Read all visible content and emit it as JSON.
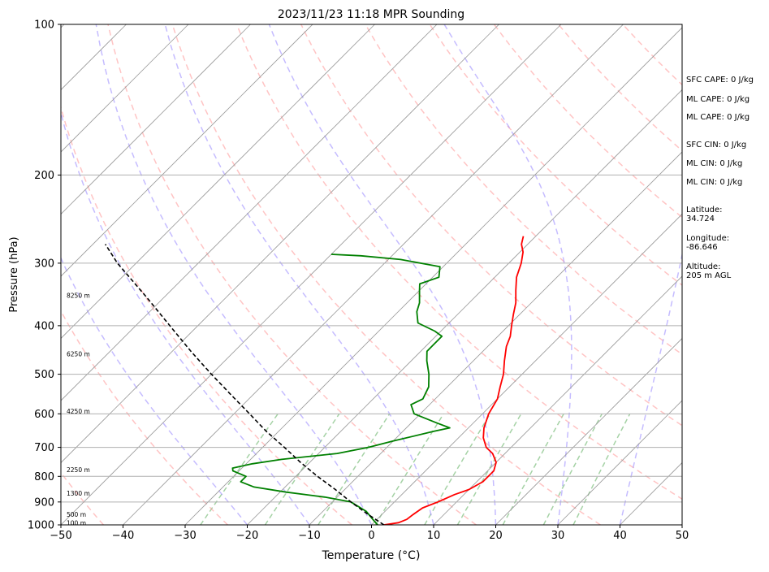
{
  "chart_data": {
    "type": "skew-t",
    "title": "2023/11/23 11:18 MPR Sounding",
    "xlabel": "Temperature (°C)",
    "ylabel": "Pressure (hPa)",
    "xlim": [
      -50,
      50
    ],
    "ylim": [
      1000,
      100
    ],
    "yscale": "log",
    "x_ticks": [
      -50,
      -40,
      -30,
      -20,
      -10,
      0,
      10,
      20,
      30,
      40,
      50
    ],
    "y_ticks": [
      1000,
      900,
      800,
      700,
      600,
      500,
      400,
      300,
      200,
      100
    ],
    "x_tick_labels": [
      "−50",
      "−40",
      "−30",
      "−20",
      "−10",
      "0",
      "10",
      "20",
      "30",
      "40",
      "50"
    ],
    "y_tick_labels": [
      "1000",
      "900",
      "800",
      "700",
      "600",
      "500",
      "400",
      "300",
      "200",
      "100"
    ],
    "grid": true,
    "series": [
      {
        "role": "temperature",
        "color": "#ff0000",
        "points": [
          {
            "p": 1000,
            "t": 2.0
          },
          {
            "p": 990,
            "t": 4.0
          },
          {
            "p": 975,
            "t": 4.8
          },
          {
            "p": 955,
            "t": 5.0
          },
          {
            "p": 925,
            "t": 5.5
          },
          {
            "p": 900,
            "t": 7.0
          },
          {
            "p": 870,
            "t": 8.5
          },
          {
            "p": 850,
            "t": 10.0
          },
          {
            "p": 820,
            "t": 11.0
          },
          {
            "p": 780,
            "t": 11.0
          },
          {
            "p": 750,
            "t": 10.0
          },
          {
            "p": 720,
            "t": 8.0
          },
          {
            "p": 700,
            "t": 6.0
          },
          {
            "p": 670,
            "t": 4.0
          },
          {
            "p": 640,
            "t": 2.5
          },
          {
            "p": 600,
            "t": 1.0
          },
          {
            "p": 560,
            "t": 0.0
          },
          {
            "p": 530,
            "t": -1.5
          },
          {
            "p": 500,
            "t": -3.0
          },
          {
            "p": 470,
            "t": -5.0
          },
          {
            "p": 440,
            "t": -7.0
          },
          {
            "p": 420,
            "t": -8.0
          },
          {
            "p": 400,
            "t": -9.5
          },
          {
            "p": 380,
            "t": -11.0
          },
          {
            "p": 360,
            "t": -12.5
          },
          {
            "p": 340,
            "t": -14.5
          },
          {
            "p": 320,
            "t": -16.5
          },
          {
            "p": 300,
            "t": -18.0
          },
          {
            "p": 285,
            "t": -19.5
          },
          {
            "p": 275,
            "t": -21.0
          },
          {
            "p": 265,
            "t": -22.0
          }
        ]
      },
      {
        "role": "dewpoint",
        "color": "#008000",
        "points": [
          {
            "p": 1000,
            "t": 1.0
          },
          {
            "p": 985,
            "t": 0.0
          },
          {
            "p": 970,
            "t": -1.0
          },
          {
            "p": 940,
            "t": -3.0
          },
          {
            "p": 900,
            "t": -7.0
          },
          {
            "p": 880,
            "t": -12.0
          },
          {
            "p": 860,
            "t": -19.0
          },
          {
            "p": 840,
            "t": -25.0
          },
          {
            "p": 820,
            "t": -28.0
          },
          {
            "p": 800,
            "t": -28.0
          },
          {
            "p": 780,
            "t": -31.0
          },
          {
            "p": 770,
            "t": -31.5
          },
          {
            "p": 755,
            "t": -29.0
          },
          {
            "p": 740,
            "t": -25.0
          },
          {
            "p": 720,
            "t": -17.0
          },
          {
            "p": 700,
            "t": -13.0
          },
          {
            "p": 680,
            "t": -10.0
          },
          {
            "p": 650,
            "t": -5.0
          },
          {
            "p": 640,
            "t": -3.0
          },
          {
            "p": 625,
            "t": -6.0
          },
          {
            "p": 600,
            "t": -11.0
          },
          {
            "p": 575,
            "t": -13.0
          },
          {
            "p": 560,
            "t": -12.0
          },
          {
            "p": 530,
            "t": -13.0
          },
          {
            "p": 500,
            "t": -15.0
          },
          {
            "p": 470,
            "t": -17.5
          },
          {
            "p": 450,
            "t": -19.0
          },
          {
            "p": 435,
            "t": -19.0
          },
          {
            "p": 420,
            "t": -19.0
          },
          {
            "p": 410,
            "t": -21.0
          },
          {
            "p": 395,
            "t": -25.0
          },
          {
            "p": 385,
            "t": -26.0
          },
          {
            "p": 375,
            "t": -27.0
          },
          {
            "p": 360,
            "t": -28.0
          },
          {
            "p": 340,
            "t": -30.0
          },
          {
            "p": 330,
            "t": -31.0
          },
          {
            "p": 320,
            "t": -29.0
          },
          {
            "p": 305,
            "t": -30.5
          },
          {
            "p": 295,
            "t": -38.0
          },
          {
            "p": 290,
            "t": -45.0
          },
          {
            "p": 288,
            "t": -50.0
          }
        ]
      },
      {
        "role": "parcel",
        "color": "#000000",
        "style": "dashed",
        "points": [
          {
            "p": 1000,
            "t": 2.0
          },
          {
            "p": 950,
            "t": -2.5
          },
          {
            "p": 900,
            "t": -7.0
          },
          {
            "p": 850,
            "t": -11.5
          },
          {
            "p": 800,
            "t": -16.5
          },
          {
            "p": 750,
            "t": -21.5
          },
          {
            "p": 700,
            "t": -26.5
          },
          {
            "p": 650,
            "t": -32.0
          },
          {
            "p": 600,
            "t": -37.5
          },
          {
            "p": 550,
            "t": -43.5
          },
          {
            "p": 500,
            "t": -50.0
          },
          {
            "p": 450,
            "t": -57.0
          },
          {
            "p": 400,
            "t": -64.5
          },
          {
            "p": 350,
            "t": -73.0
          },
          {
            "p": 300,
            "t": -83.0
          },
          {
            "p": 275,
            "t": -88.0
          }
        ]
      }
    ],
    "height_labels": [
      {
        "p": 348,
        "text": "8250 m"
      },
      {
        "p": 455,
        "text": "6250 m"
      },
      {
        "p": 593,
        "text": "4250 m"
      },
      {
        "p": 776,
        "text": "2250 m"
      },
      {
        "p": 865,
        "text": "1300 m"
      },
      {
        "p": 952,
        "text": "500 m"
      },
      {
        "p": 990,
        "text": "100 m"
      }
    ],
    "reference_lines": {
      "isotherms_step_c": 10,
      "dry_adiabats_theta_k": [
        230,
        250,
        270,
        290,
        310,
        330,
        350,
        370,
        390,
        410,
        430,
        450,
        470,
        490,
        510,
        530,
        550
      ],
      "dry_adiabat_color": "#ff9c9c",
      "moist_adiabats_start_c": [
        -20,
        -10,
        0,
        10,
        20,
        30,
        40,
        50,
        60
      ],
      "moist_adiabat_color": "#9f8fff",
      "mixing_ratio_gkg": [
        0.4,
        1,
        2,
        4,
        7,
        10,
        16,
        24,
        32
      ],
      "mixing_ratio_color": "#7fbf7f"
    }
  },
  "stats": {
    "sfc_cape": "SFC CAPE: 0 J/kg",
    "ml_cape_1": "ML CAPE: 0 J/kg",
    "ml_cape_2": "ML CAPE: 0 J/kg",
    "sfc_cin": "SFC CIN: 0 J/kg",
    "ml_cin_1": "ML CIN: 0 J/kg",
    "ml_cin_2": "ML CIN: 0 J/kg",
    "latitude_label": "Latitude:",
    "latitude_value": "34.724",
    "longitude_label": "Longitude:",
    "longitude_value": "-86.646",
    "altitude_label": "Altitude:",
    "altitude_value": "205 m AGL"
  }
}
